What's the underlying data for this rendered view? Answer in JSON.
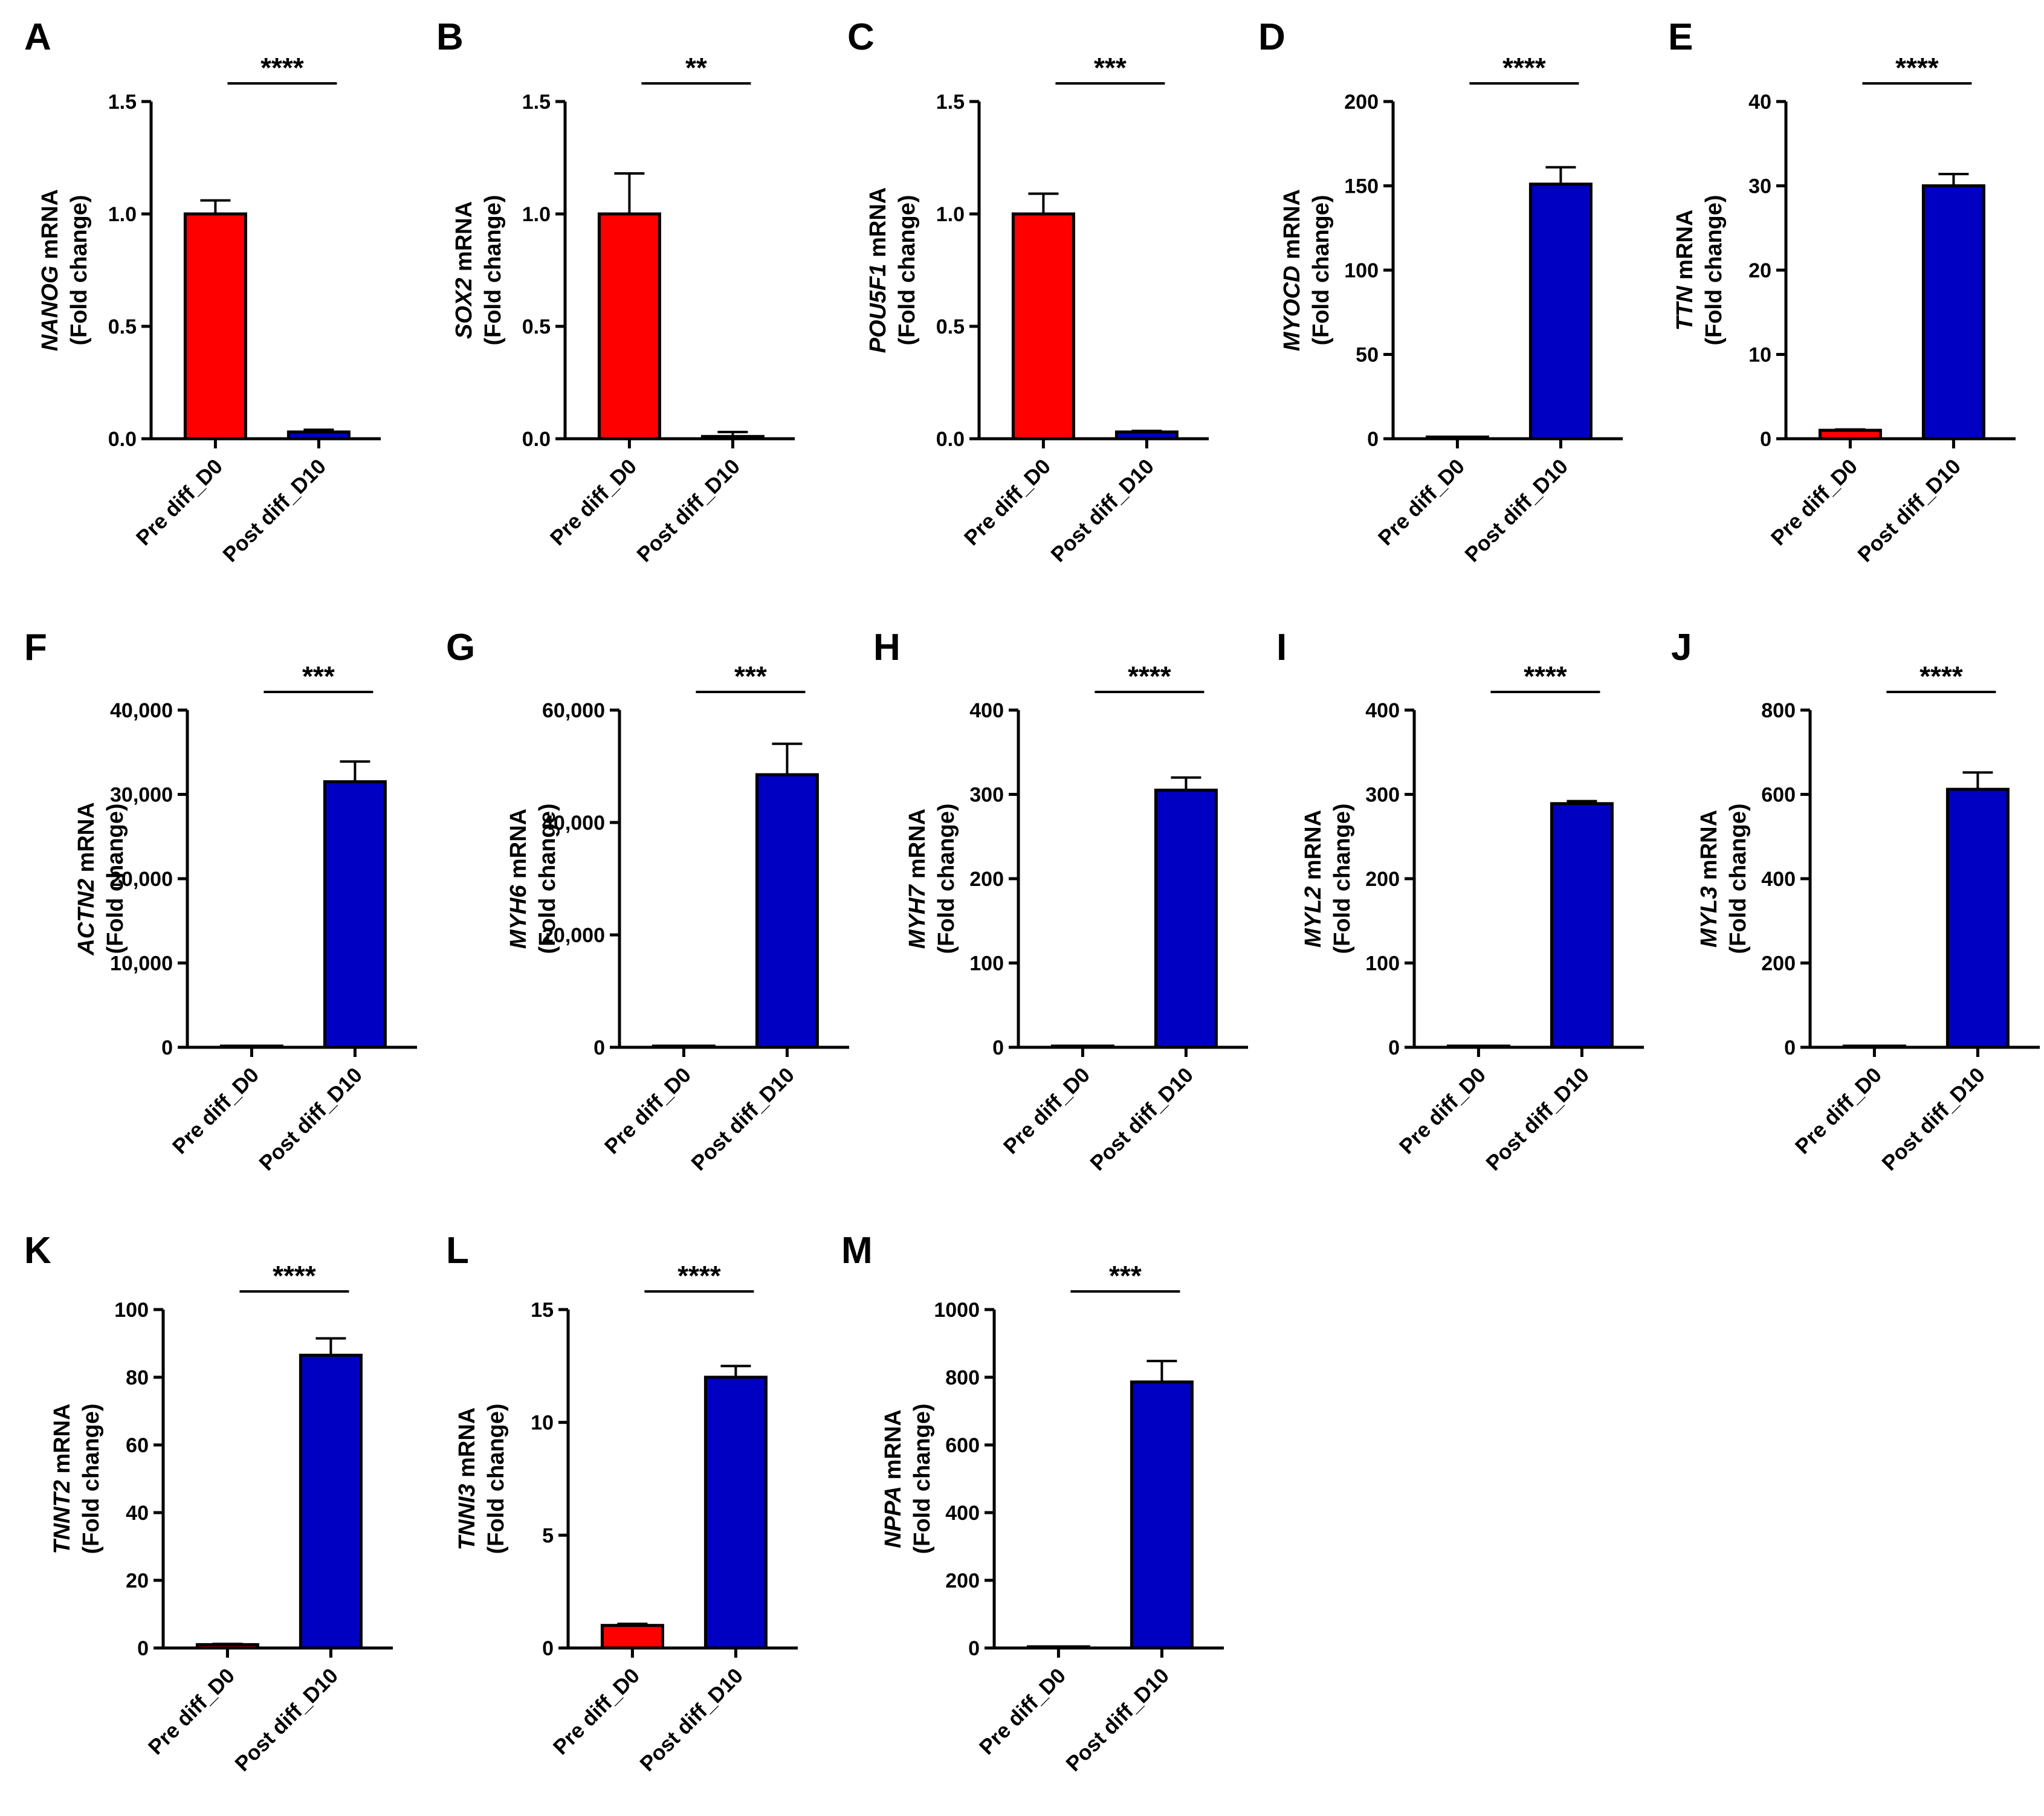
{
  "colors": {
    "pre": "#fe0000",
    "post": "#0000c2",
    "axis": "#000000"
  },
  "chart_data": [
    {
      "panel": "A",
      "type": "bar",
      "gene": "NANOG",
      "ylabel_suffix": " mRNA",
      "ylabel2": "(Fold change)",
      "categories": [
        "Pre diff_D0",
        "Post diff_D10"
      ],
      "values": [
        1.0,
        0.03
      ],
      "errors": [
        0.06,
        0.01
      ],
      "ylim": [
        0,
        1.5
      ],
      "yticks": [
        "0.0",
        "0.5",
        "1.0",
        "1.5"
      ],
      "significance": "****"
    },
    {
      "panel": "B",
      "type": "bar",
      "gene": "SOX2",
      "ylabel_suffix": " mRNA",
      "ylabel2": "(Fold change)",
      "categories": [
        "Pre diff_D0",
        "Post diff_D10"
      ],
      "values": [
        1.0,
        0.01
      ],
      "errors": [
        0.18,
        0.02
      ],
      "ylim": [
        0,
        1.5
      ],
      "yticks": [
        "0.0",
        "0.5",
        "1.0",
        "1.5"
      ],
      "significance": "**"
    },
    {
      "panel": "C",
      "type": "bar",
      "gene": "POU5F1",
      "ylabel_suffix": " mRNA",
      "ylabel2": "(Fold change)",
      "categories": [
        "Pre diff_D0",
        "Post diff_D10"
      ],
      "values": [
        1.0,
        0.03
      ],
      "errors": [
        0.09,
        0.005
      ],
      "ylim": [
        0,
        1.5
      ],
      "yticks": [
        "0.0",
        "0.5",
        "1.0",
        "1.5"
      ],
      "significance": "***"
    },
    {
      "panel": "D",
      "type": "bar",
      "gene": "MYOCD",
      "ylabel_suffix": " mRNA",
      "ylabel2": "(Fold change)",
      "categories": [
        "Pre diff_D0",
        "Post diff_D10"
      ],
      "values": [
        1,
        151
      ],
      "errors": [
        0.1,
        10
      ],
      "ylim": [
        0,
        200
      ],
      "yticks": [
        "0",
        "50",
        "100",
        "150",
        "200"
      ],
      "significance": "****"
    },
    {
      "panel": "E",
      "type": "bar",
      "gene": "TTN",
      "ylabel_suffix": " mRNA",
      "ylabel2": "(Fold change)",
      "categories": [
        "Pre diff_D0",
        "Post diff_D10"
      ],
      "values": [
        1,
        30
      ],
      "errors": [
        0.1,
        1.4
      ],
      "ylim": [
        0,
        40
      ],
      "yticks": [
        "0",
        "10",
        "20",
        "30",
        "40"
      ],
      "significance": "****"
    },
    {
      "panel": "F",
      "type": "bar",
      "gene": "ACTN2",
      "ylabel_suffix": " mRNA",
      "ylabel2": "(Fold change)",
      "categories": [
        "Pre diff_D0",
        "Post diff_D10"
      ],
      "values": [
        1,
        31500
      ],
      "errors": [
        0,
        2400
      ],
      "ylim": [
        0,
        40000
      ],
      "yticks": [
        "0",
        "10,000",
        "20,000",
        "30,000",
        "40,000"
      ],
      "significance": "***"
    },
    {
      "panel": "G",
      "type": "bar",
      "gene": "MYH6",
      "ylabel_suffix": " mRNA",
      "ylabel2": "(Fold change)",
      "categories": [
        "Pre diff_D0",
        "Post diff_D10"
      ],
      "values": [
        1,
        48500
      ],
      "errors": [
        0,
        5500
      ],
      "ylim": [
        0,
        60000
      ],
      "yticks": [
        "0",
        "20,000",
        "40,000",
        "60,000"
      ],
      "significance": "***"
    },
    {
      "panel": "H",
      "type": "bar",
      "gene": "MYH7",
      "ylabel_suffix": " mRNA",
      "ylabel2": "(Fold change)",
      "categories": [
        "Pre diff_D0",
        "Post diff_D10"
      ],
      "values": [
        1,
        305
      ],
      "errors": [
        0,
        15
      ],
      "ylim": [
        0,
        400
      ],
      "yticks": [
        "0",
        "100",
        "200",
        "300",
        "400"
      ],
      "significance": "****"
    },
    {
      "panel": "I",
      "type": "bar",
      "gene": "MYL2",
      "ylabel_suffix": " mRNA",
      "ylabel2": "(Fold change)",
      "categories": [
        "Pre diff_D0",
        "Post diff_D10"
      ],
      "values": [
        1,
        289
      ],
      "errors": [
        0,
        3
      ],
      "ylim": [
        0,
        400
      ],
      "yticks": [
        "0",
        "100",
        "200",
        "300",
        "400"
      ],
      "significance": "****"
    },
    {
      "panel": "J",
      "type": "bar",
      "gene": "MYL3",
      "ylabel_suffix": " mRNA",
      "ylabel2": "(Fold change)",
      "categories": [
        "Pre diff_D0",
        "Post diff_D10"
      ],
      "values": [
        1,
        612
      ],
      "errors": [
        0,
        40
      ],
      "ylim": [
        0,
        800
      ],
      "yticks": [
        "0",
        "200",
        "400",
        "600",
        "800"
      ],
      "significance": "****"
    },
    {
      "panel": "K",
      "type": "bar",
      "gene": "TNNT2",
      "ylabel_suffix": " mRNA",
      "ylabel2": "(Fold change)",
      "categories": [
        "Pre diff_D0",
        "Post diff_D10"
      ],
      "values": [
        1,
        86.5
      ],
      "errors": [
        0.2,
        5
      ],
      "ylim": [
        0,
        100
      ],
      "yticks": [
        "0",
        "20",
        "40",
        "60",
        "80",
        "100"
      ],
      "significance": "****"
    },
    {
      "panel": "L",
      "type": "bar",
      "gene": "TNNI3",
      "ylabel_suffix": " mRNA",
      "ylabel2": "(Fold change)",
      "categories": [
        "Pre diff_D0",
        "Post diff_D10"
      ],
      "values": [
        1,
        12
      ],
      "errors": [
        0.07,
        0.5
      ],
      "ylim": [
        0,
        15
      ],
      "yticks": [
        "0",
        "5",
        "10",
        "15"
      ],
      "significance": "****"
    },
    {
      "panel": "M",
      "type": "bar",
      "gene": "NPPA",
      "ylabel_suffix": " mRNA",
      "ylabel2": "(Fold change)",
      "categories": [
        "Pre diff_D0",
        "Post diff_D10"
      ],
      "values": [
        1,
        786
      ],
      "errors": [
        0,
        62
      ],
      "ylim": [
        0,
        1000
      ],
      "yticks": [
        "0",
        "200",
        "400",
        "600",
        "800",
        "1000"
      ],
      "significance": "***"
    }
  ]
}
